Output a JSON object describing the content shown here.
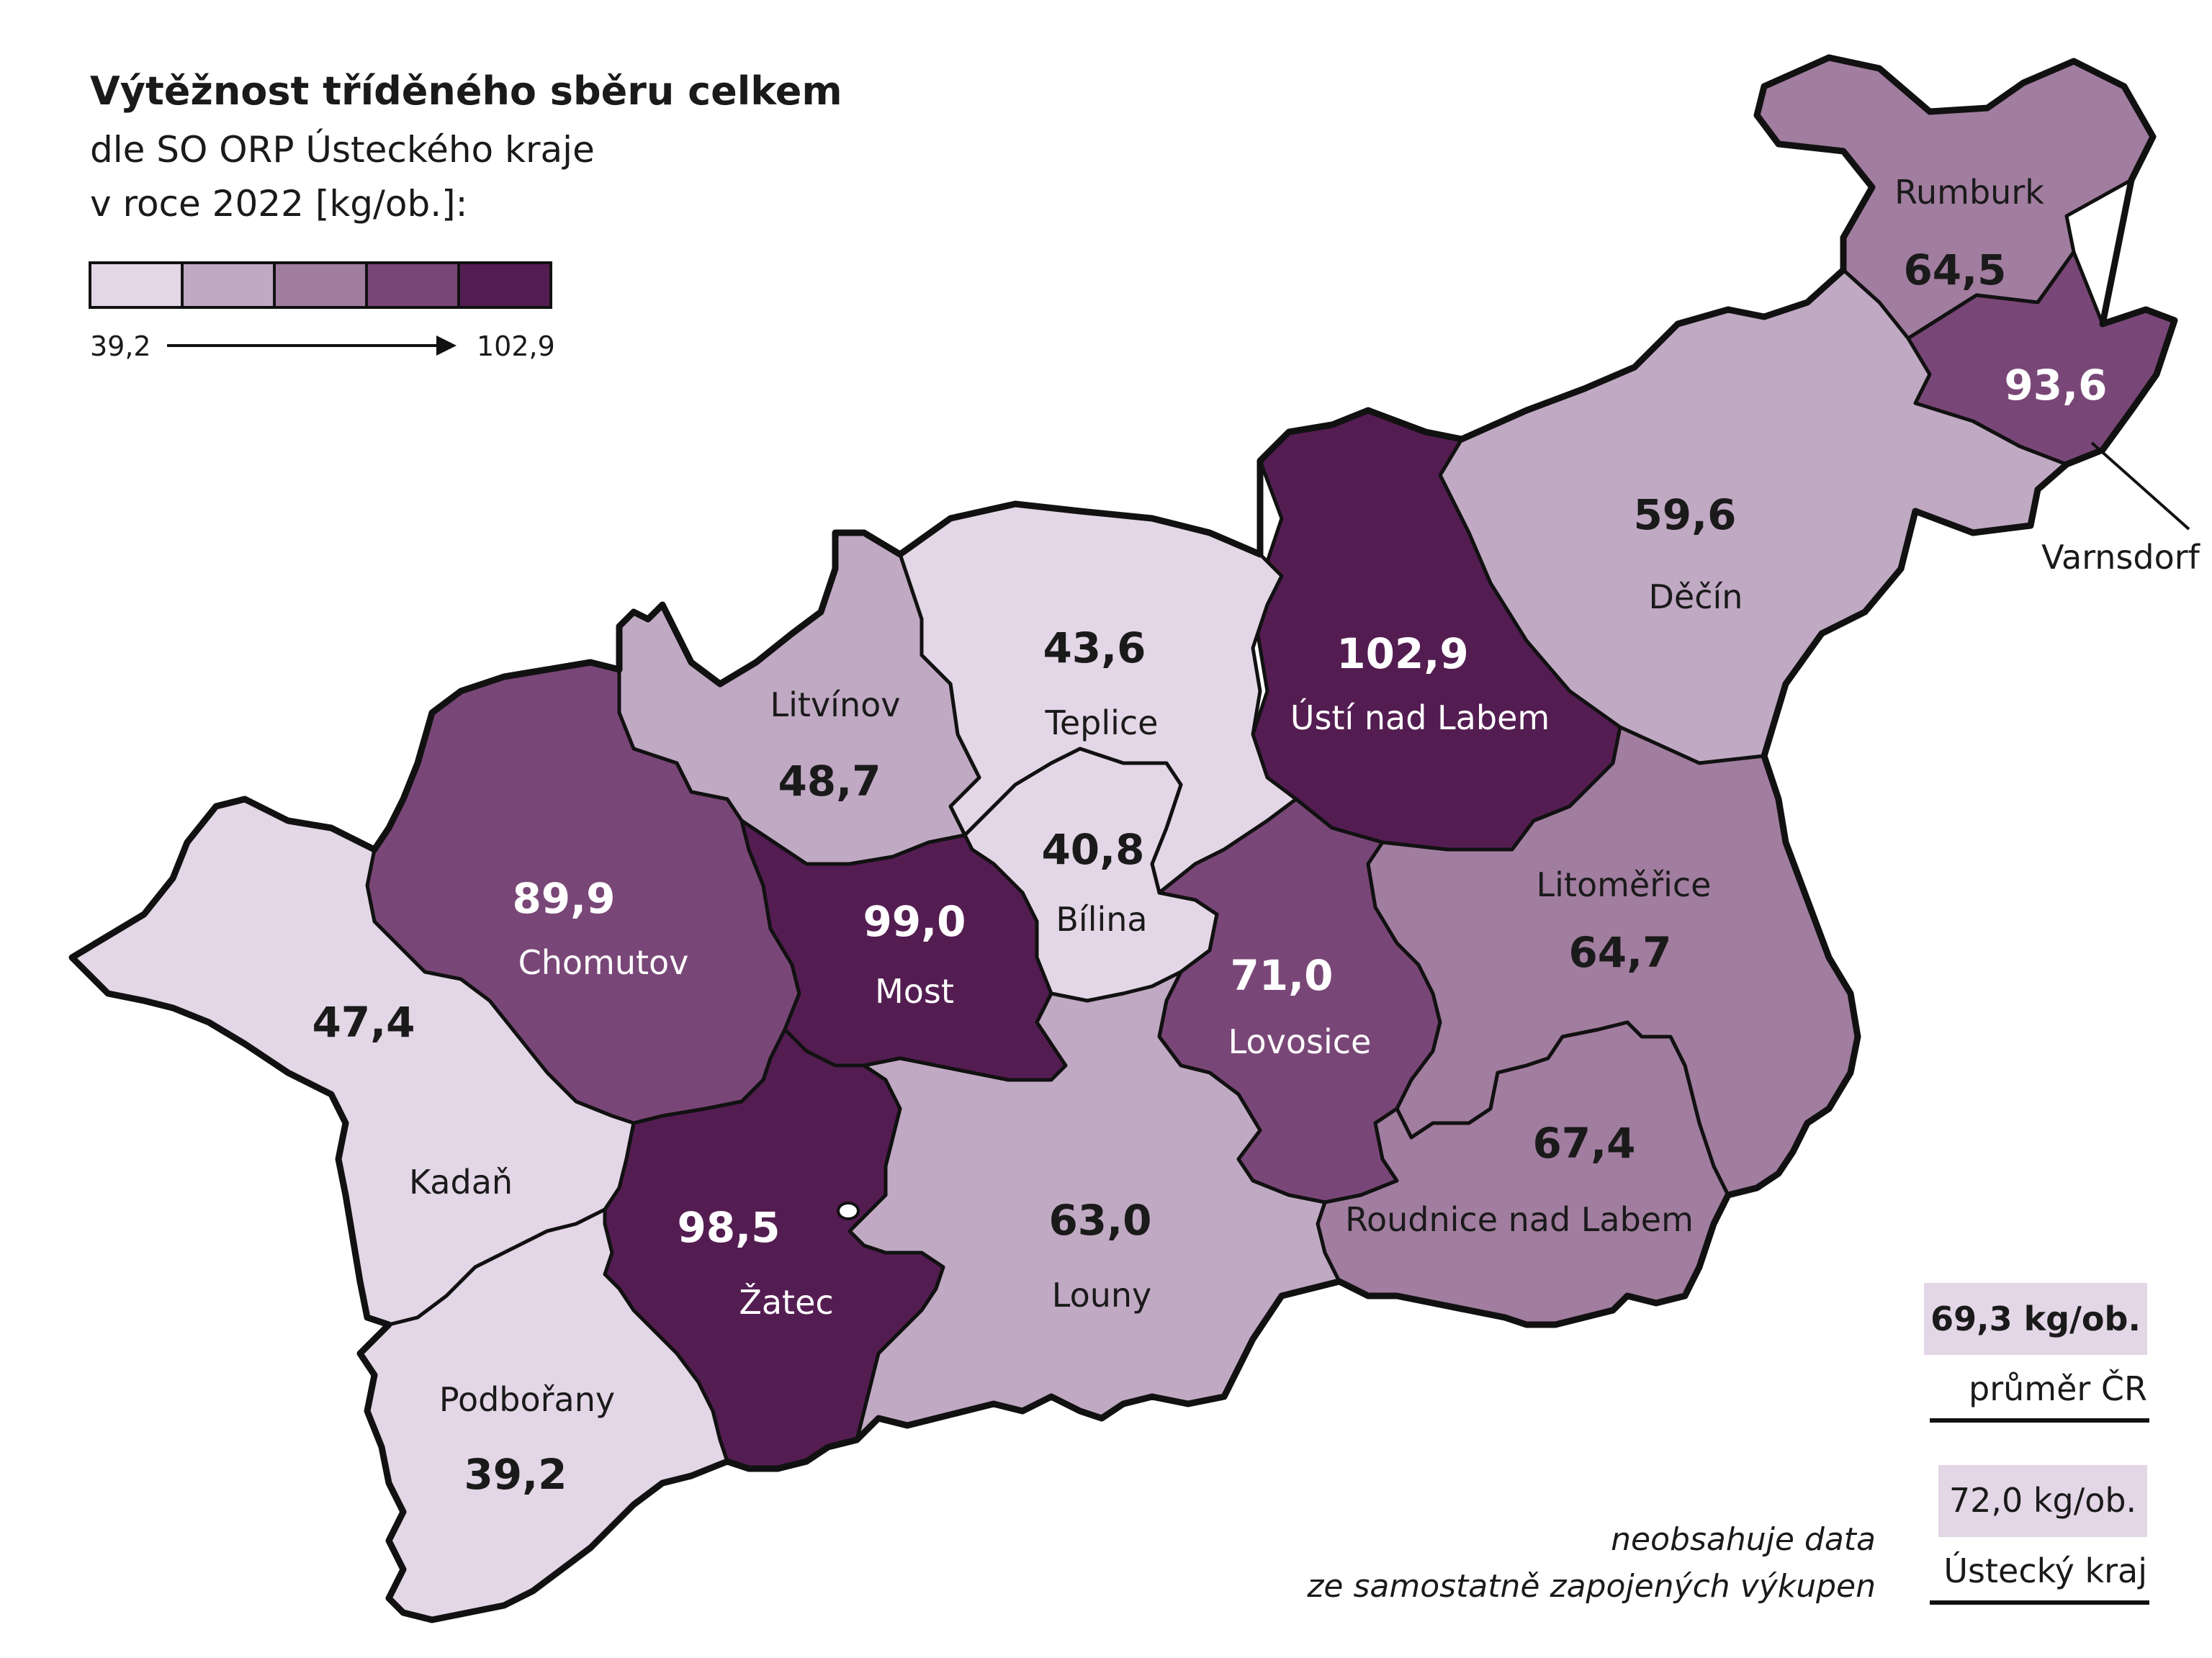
{
  "title": "Výtěžnost tříděného sběru celkem",
  "subtitle_line1": "dle SO ORP Ústeckého kraje",
  "subtitle_line2": "v roce 2022 [kg/ob.]:",
  "legend": {
    "min_label": "39,2",
    "max_label": "102,9",
    "min": 39.2,
    "max": 102.9,
    "colors": [
      "#e3d6e6",
      "#c0a9c3",
      "#a17d9f",
      "#794777",
      "#541d52"
    ]
  },
  "regions": [
    {
      "name": "Rumburk",
      "value_label": "64,5",
      "value": 64.5,
      "color": "#a17d9f"
    },
    {
      "name": "Varnsdorf",
      "value_label": "93,6",
      "value": 93.6,
      "color": "#794777"
    },
    {
      "name": "Děčín",
      "value_label": "59,6",
      "value": 59.6,
      "color": "#c0a9c3"
    },
    {
      "name": "Ústí nad Labem",
      "value_label": "102,9",
      "value": 102.9,
      "color": "#541d52"
    },
    {
      "name": "Teplice",
      "value_label": "43,6",
      "value": 43.6,
      "color": "#e3d6e6"
    },
    {
      "name": "Litvínov",
      "value_label": "48,7",
      "value": 48.7,
      "color": "#c0a9c3"
    },
    {
      "name": "Bílina",
      "value_label": "40,8",
      "value": 40.8,
      "color": "#e3d6e6"
    },
    {
      "name": "Chomutov",
      "value_label": "89,9",
      "value": 89.9,
      "color": "#794777"
    },
    {
      "name": "Most",
      "value_label": "99,0",
      "value": 99.0,
      "color": "#541d52"
    },
    {
      "name": "Lovosice",
      "value_label": "71,0",
      "value": 71.0,
      "color": "#794777"
    },
    {
      "name": "Litoměřice",
      "value_label": "64,7",
      "value": 64.7,
      "color": "#a17d9f"
    },
    {
      "name": "Kadaň",
      "value_label": "47,4",
      "value": 47.4,
      "color": "#e3d6e6"
    },
    {
      "name": "Žatec",
      "value_label": "98,5",
      "value": 98.5,
      "color": "#541d52"
    },
    {
      "name": "Louny",
      "value_label": "63,0",
      "value": 63.0,
      "color": "#c0a9c3"
    },
    {
      "name": "Roudnice nad Labem",
      "value_label": "67,4",
      "value": 67.4,
      "color": "#a17d9f"
    },
    {
      "name": "Podbořany",
      "value_label": "39,2",
      "value": 39.2,
      "color": "#e3d6e6"
    }
  ],
  "summary": {
    "cr_value": "69,3 kg/ob.",
    "cr_label": "průměr ČR",
    "kraj_value": "72,0 kg/ob.",
    "kraj_label": "Ústecký kraj"
  },
  "note_line1": "neobsahuje data",
  "note_line2": "ze samostatně zapojených výkupen"
}
